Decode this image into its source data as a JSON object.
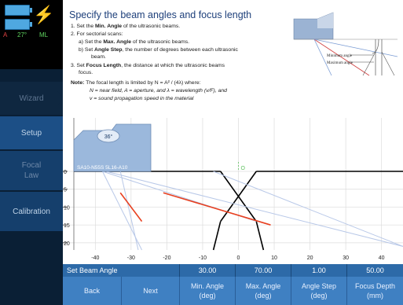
{
  "status": {
    "temp": "27°",
    "channel": "A",
    "mode": "ML"
  },
  "nav": {
    "wizard": "Wizard",
    "setup": "Setup",
    "focal_law": "Focal\nLaw",
    "calibration": "Calibration"
  },
  "instructions": {
    "title": "Specify the beam angles and focus length",
    "l1_pre": "1.  Set the ",
    "l1_bold": "Min. Angle",
    "l1_post": " of the ultrasonic beams.",
    "l2": "2.  For sectorial scans:",
    "l2a_pre": "a)  Set the ",
    "l2a_bold": "Max. Angle",
    "l2a_post": " of the ultrasonic beams.",
    "l2b_pre": "b)  Set ",
    "l2b_bold": "Angle Step",
    "l2b_post": ", the number of degrees between each ultrasonic",
    "l2b_cont": "beam.",
    "l3_pre": "3.  Set ",
    "l3_bold": "Focus Length",
    "l3_post": ", the distance at which the ultrasonic beams",
    "l3_cont": "focus.",
    "note_bold": "Note:",
    "note_1": " The focal length is limited by N = A² / (4λ) where:",
    "note_2": "N = near field, A = aperture, and λ = wavelength (v/F), and",
    "note_3": "v = sound propagation speed in the material",
    "diagram_min": "Minimum angle",
    "diagram_max": "Maximum angle"
  },
  "chart_data": {
    "type": "line",
    "probe_label": "SA10-N55S 5L16-A10",
    "wedge_angle": "36°",
    "x_ticks": [
      "-40",
      "-30",
      "-20",
      "-10",
      "0",
      "10",
      "20",
      "30",
      "40"
    ],
    "y_ticks": [
      "0",
      "5",
      "10",
      "15",
      "20"
    ],
    "xlim": [
      -46,
      46
    ],
    "ylim": [
      0,
      22
    ],
    "origin_label": "O",
    "series": [
      {
        "values": [
          [
            -33,
            0
          ],
          [
            -28,
            22
          ]
        ]
      },
      {
        "values": [
          [
            -38,
            0
          ],
          [
            -27,
            22
          ]
        ]
      },
      {
        "values": [
          [
            -38,
            0
          ],
          [
            5,
            14
          ]
        ]
      },
      {
        "values": [
          [
            -37,
            0
          ],
          [
            46,
            21
          ]
        ]
      },
      {
        "values": [
          [
            -7,
            0
          ],
          [
            46,
            21
          ]
        ]
      },
      {
        "values": [
          [
            -33,
            6
          ],
          [
            -27,
            14
          ]
        ]
      },
      {
        "values": [
          [
            -21,
            6
          ],
          [
            9,
            15
          ]
        ]
      }
    ],
    "colors": {
      "beam": "#b8c8e8",
      "focus": "#e84020",
      "boundary": "#000000",
      "origin": "#5fc25f"
    }
  },
  "bottom": {
    "step_name": "Set Beam Angle",
    "values": [
      "30.00",
      "70.00",
      "1.00",
      "50.00"
    ],
    "back": "Back",
    "next": "Next",
    "labels": [
      "Min. Angle\n(deg)",
      "Max. Angle\n(deg)",
      "Angle Step\n(deg)",
      "Focus Depth\n(mm)"
    ]
  }
}
